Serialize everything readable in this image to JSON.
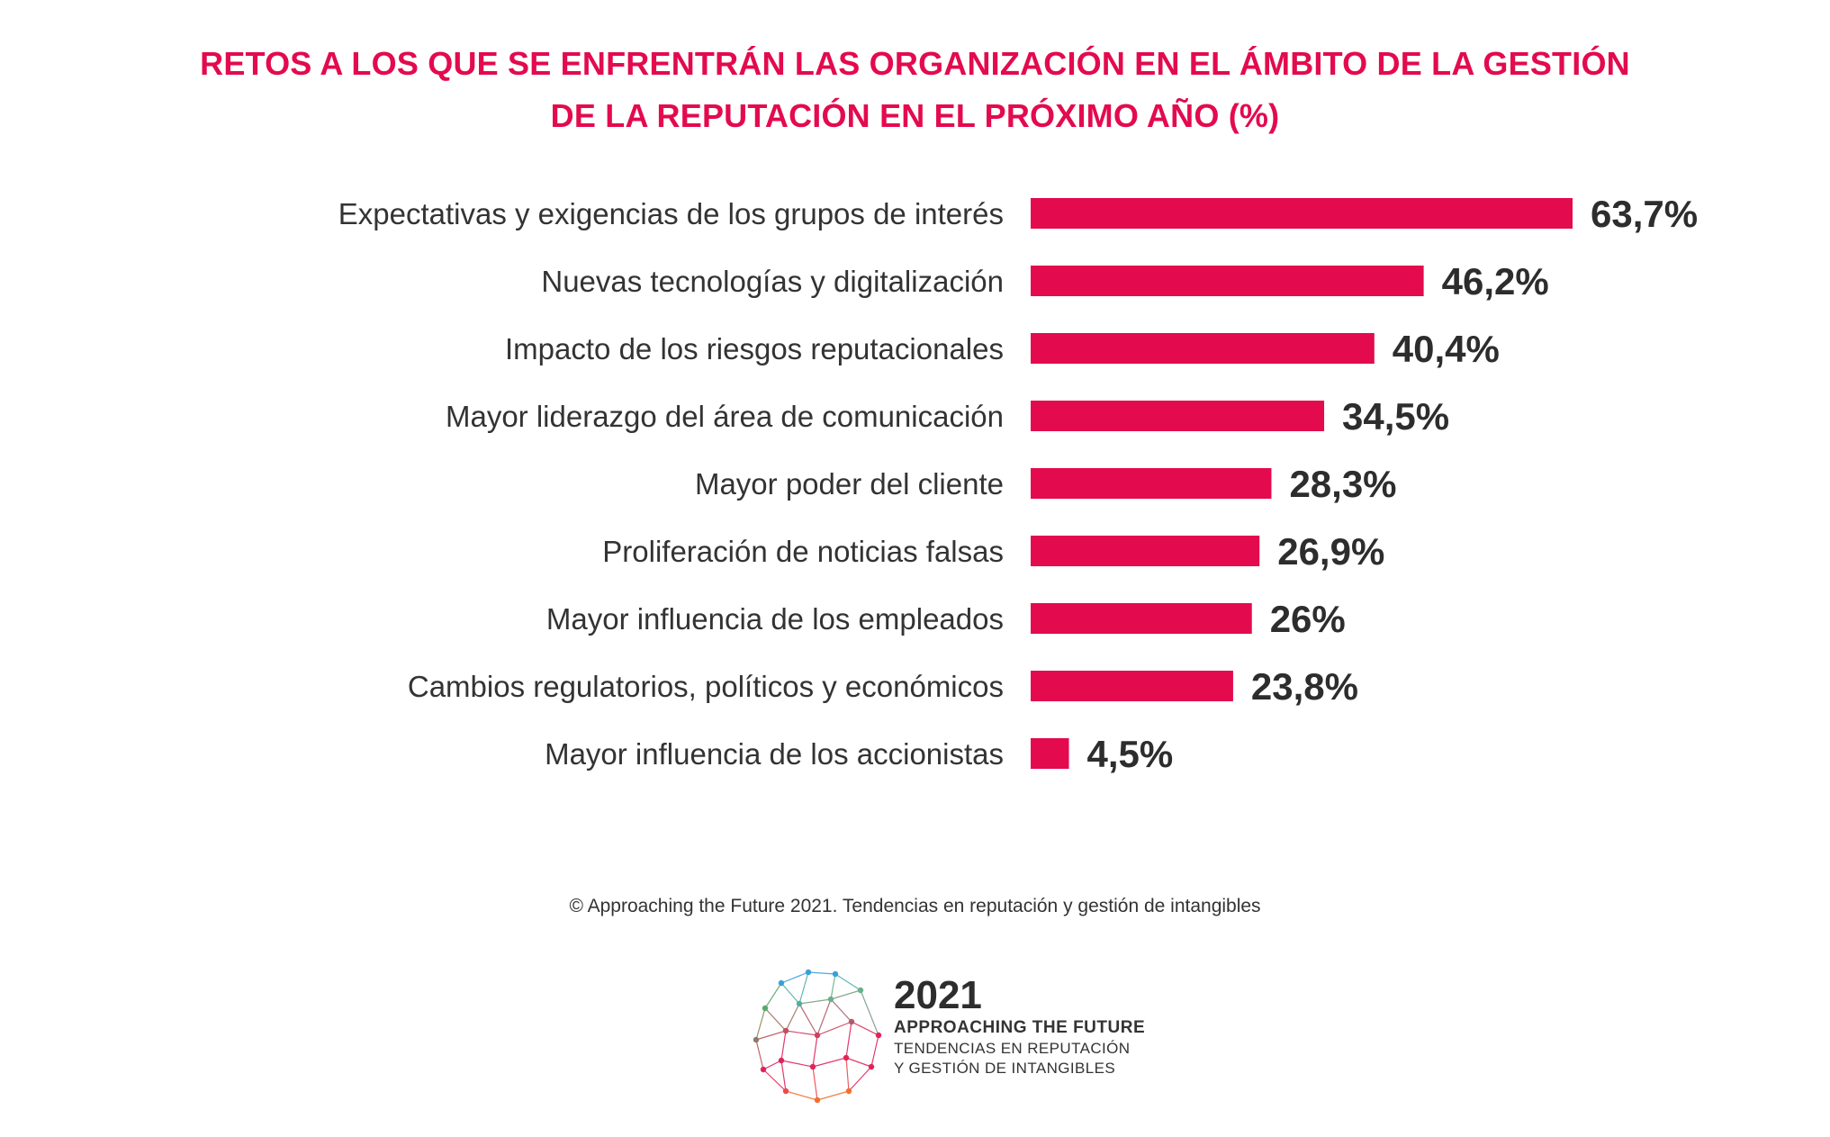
{
  "chart_data": {
    "type": "bar",
    "orientation": "horizontal",
    "title": "RETOS A LOS QUE SE ENFRENTRÁN LAS ORGANIZACIÓN EN EL ÁMBITO DE LA GESTIÓN DE LA REPUTACIÓN EN EL PRÓXIMO AÑO (%)",
    "title_lines": [
      "RETOS A LOS QUE SE ENFRENTRÁN LAS ORGANIZACIÓN EN EL ÁMBITO DE LA GESTIÓN",
      "DE LA REPUTACIÓN EN EL PRÓXIMO AÑO (%)"
    ],
    "categories": [
      "Expectativas y exigencias de los grupos de interés",
      "Nuevas tecnologías y digitalización",
      "Impacto de los riesgos reputacionales",
      "Mayor liderazgo del área de comunicación",
      "Mayor poder del cliente",
      "Proliferación de noticias falsas",
      "Mayor influencia de los empleados",
      "Cambios regulatorios, políticos y económicos",
      "Mayor influencia de los accionistas"
    ],
    "values": [
      63.7,
      46.2,
      40.4,
      34.5,
      28.3,
      26.9,
      26,
      23.8,
      4.5
    ],
    "value_labels": [
      "63,7%",
      "46,2%",
      "40,4%",
      "34,5%",
      "28,3%",
      "26,9%",
      "26%",
      "23,8%",
      "4,5%"
    ],
    "xlim": [
      0,
      63.7
    ],
    "grid": false,
    "legend": "none",
    "bar_color": "#e30a4e"
  },
  "source": "© Approaching the Future 2021. Tendencias en reputación y gestión de intangibles",
  "logo": {
    "year": "2021",
    "name": "APPROACHING THE FUTURE",
    "tagline_1": "TENDENCIAS EN REPUTACIÓN",
    "tagline_2": "Y GESTIÓN DE INTANGIBLES"
  },
  "colors": {
    "accent": "#e30a4e",
    "text": "#333333"
  }
}
